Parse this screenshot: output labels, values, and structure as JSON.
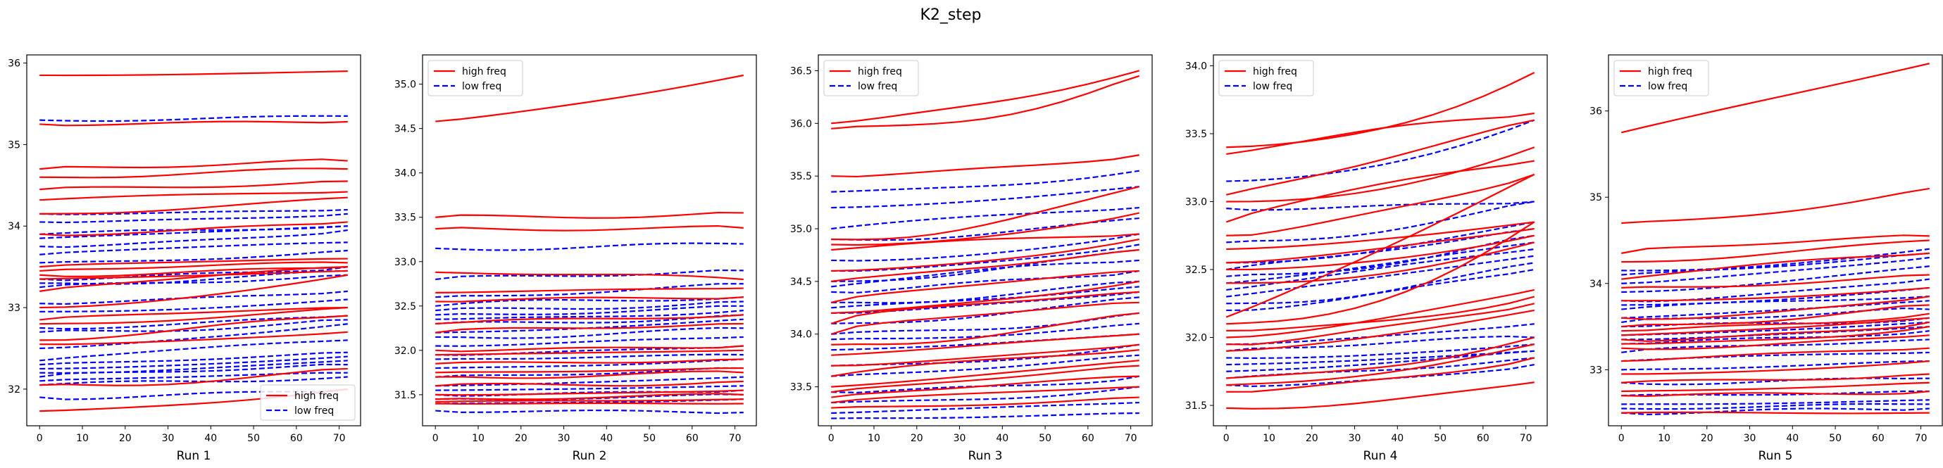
{
  "figure": {
    "suptitle": "K2_step",
    "colors": {
      "high": "#ff0000",
      "low": "#0000ff"
    },
    "legend_labels": {
      "high": "high freq",
      "low": "low freq"
    }
  },
  "chart_data": [
    {
      "type": "line",
      "xlabel": "Run 1",
      "xlim": [
        -3,
        75
      ],
      "ylim": [
        31.55,
        36.1
      ],
      "xticks": [
        0,
        10,
        20,
        30,
        40,
        50,
        60,
        70
      ],
      "yticks": [
        32,
        33,
        34,
        35,
        36
      ],
      "legend": "lower-right",
      "high_lines": [
        [
          35.85,
          35.9
        ],
        [
          35.25,
          35.28
        ],
        [
          34.7,
          34.8
        ],
        [
          34.6,
          34.7
        ],
        [
          34.45,
          34.55
        ],
        [
          34.32,
          34.42
        ],
        [
          34.15,
          34.35
        ],
        [
          33.9,
          34.05
        ],
        [
          33.5,
          33.6
        ],
        [
          33.45,
          33.55
        ],
        [
          33.4,
          33.5
        ],
        [
          33.35,
          33.45
        ],
        [
          33.2,
          33.5
        ],
        [
          33.0,
          33.4
        ],
        [
          32.85,
          33.0
        ],
        [
          32.8,
          33.0
        ],
        [
          32.6,
          32.9
        ],
        [
          32.55,
          32.7
        ],
        [
          32.05,
          32.25
        ],
        [
          31.73,
          32.0
        ]
      ],
      "low_lines": [
        [
          35.3,
          35.35
        ],
        [
          34.15,
          34.2
        ],
        [
          34.05,
          34.15
        ],
        [
          33.9,
          34.0
        ],
        [
          33.85,
          34.0
        ],
        [
          33.75,
          33.95
        ],
        [
          33.65,
          33.8
        ],
        [
          33.55,
          33.7
        ],
        [
          33.35,
          33.5
        ],
        [
          33.3,
          33.45
        ],
        [
          33.25,
          33.4
        ],
        [
          33.05,
          33.2
        ],
        [
          32.95,
          33.1
        ],
        [
          32.75,
          32.9
        ],
        [
          32.7,
          32.85
        ],
        [
          32.5,
          32.8
        ],
        [
          32.35,
          32.6
        ],
        [
          32.3,
          32.45
        ],
        [
          32.25,
          32.4
        ],
        [
          32.2,
          32.35
        ],
        [
          32.15,
          32.3
        ],
        [
          32.1,
          32.2
        ],
        [
          32.05,
          32.15
        ],
        [
          31.9,
          32.0
        ]
      ]
    },
    {
      "type": "line",
      "xlabel": "Run 2",
      "xlim": [
        -3,
        75
      ],
      "ylim": [
        31.15,
        35.33
      ],
      "xticks": [
        0,
        10,
        20,
        30,
        40,
        50,
        60,
        70
      ],
      "yticks": [
        31.5,
        32.0,
        32.5,
        33.0,
        33.5,
        34.0,
        34.5,
        35.0
      ],
      "legend": "upper-left",
      "high_lines": [
        [
          34.58,
          35.1
        ],
        [
          33.5,
          33.55
        ],
        [
          33.37,
          33.38
        ],
        [
          32.88,
          32.8
        ],
        [
          32.65,
          32.7
        ],
        [
          32.55,
          32.6
        ],
        [
          32.3,
          32.4
        ],
        [
          32.2,
          32.3
        ],
        [
          32.0,
          32.05
        ],
        [
          31.95,
          32.0
        ],
        [
          31.85,
          31.9
        ],
        [
          31.75,
          31.8
        ],
        [
          31.7,
          31.75
        ],
        [
          31.6,
          31.65
        ],
        [
          31.5,
          31.55
        ],
        [
          31.45,
          31.5
        ],
        [
          31.42,
          31.45
        ],
        [
          31.4,
          31.4
        ]
      ],
      "low_lines": [
        [
          33.15,
          33.2
        ],
        [
          32.8,
          32.9
        ],
        [
          32.6,
          32.75
        ],
        [
          32.5,
          32.6
        ],
        [
          32.45,
          32.55
        ],
        [
          32.4,
          32.5
        ],
        [
          32.35,
          32.45
        ],
        [
          32.3,
          32.4
        ],
        [
          32.2,
          32.35
        ],
        [
          32.15,
          32.25
        ],
        [
          32.05,
          32.15
        ],
        [
          31.95,
          32.05
        ],
        [
          31.9,
          31.95
        ],
        [
          31.8,
          31.9
        ],
        [
          31.7,
          31.8
        ],
        [
          31.6,
          31.7
        ],
        [
          31.55,
          31.6
        ],
        [
          31.5,
          31.55
        ],
        [
          31.45,
          31.5
        ],
        [
          31.4,
          31.45
        ],
        [
          31.32,
          31.3
        ]
      ]
    },
    {
      "type": "line",
      "xlabel": "Run 3",
      "xlim": [
        -3,
        75
      ],
      "ylim": [
        33.13,
        36.65
      ],
      "xticks": [
        0,
        10,
        20,
        30,
        40,
        50,
        60,
        70
      ],
      "yticks": [
        33.5,
        34.0,
        34.5,
        35.0,
        35.5,
        36.0,
        36.5
      ],
      "legend": "upper-left",
      "high_lines": [
        [
          36.0,
          36.5
        ],
        [
          35.95,
          36.45
        ],
        [
          35.5,
          35.7
        ],
        [
          34.9,
          35.4
        ],
        [
          34.85,
          35.15
        ],
        [
          34.8,
          34.95
        ],
        [
          34.6,
          34.9
        ],
        [
          34.5,
          34.8
        ],
        [
          34.3,
          34.6
        ],
        [
          34.2,
          34.5
        ],
        [
          34.1,
          34.4
        ],
        [
          34.0,
          34.3
        ],
        [
          33.9,
          34.2
        ],
        [
          33.8,
          34.0
        ],
        [
          33.7,
          33.9
        ],
        [
          33.6,
          33.85
        ],
        [
          33.5,
          33.75
        ],
        [
          33.45,
          33.7
        ],
        [
          33.4,
          33.6
        ],
        [
          33.35,
          33.5
        ],
        [
          33.3,
          33.4
        ]
      ],
      "low_lines": [
        [
          35.35,
          35.55
        ],
        [
          35.2,
          35.4
        ],
        [
          35.0,
          35.2
        ],
        [
          34.9,
          35.1
        ],
        [
          34.7,
          34.95
        ],
        [
          34.6,
          34.85
        ],
        [
          34.5,
          34.8
        ],
        [
          34.45,
          34.7
        ],
        [
          34.4,
          34.6
        ],
        [
          34.3,
          34.5
        ],
        [
          34.25,
          34.45
        ],
        [
          34.2,
          34.4
        ],
        [
          34.1,
          34.35
        ],
        [
          34.0,
          34.2
        ],
        [
          33.95,
          34.1
        ],
        [
          33.85,
          34.0
        ],
        [
          33.7,
          33.9
        ],
        [
          33.6,
          33.8
        ],
        [
          33.45,
          33.6
        ],
        [
          33.35,
          33.5
        ],
        [
          33.25,
          33.35
        ],
        [
          33.2,
          33.25
        ]
      ]
    },
    {
      "type": "line",
      "xlabel": "Run 4",
      "xlim": [
        -3,
        75
      ],
      "ylim": [
        31.35,
        34.08
      ],
      "xticks": [
        0,
        10,
        20,
        30,
        40,
        50,
        60,
        70
      ],
      "yticks": [
        31.5,
        32.0,
        32.5,
        33.0,
        33.5,
        34.0
      ],
      "legend": "upper-left",
      "high_lines": [
        [
          33.4,
          33.95
        ],
        [
          33.35,
          33.65
        ],
        [
          33.05,
          33.6
        ],
        [
          33.0,
          33.4
        ],
        [
          32.85,
          33.3
        ],
        [
          32.75,
          33.2
        ],
        [
          32.65,
          32.85
        ],
        [
          32.55,
          32.8
        ],
        [
          32.5,
          32.75
        ],
        [
          32.4,
          32.7
        ],
        [
          32.15,
          33.2
        ],
        [
          32.1,
          32.85
        ],
        [
          32.05,
          32.3
        ],
        [
          32.0,
          32.35
        ],
        [
          31.95,
          32.25
        ],
        [
          31.9,
          32.2
        ],
        [
          31.7,
          32.0
        ],
        [
          31.65,
          31.95
        ],
        [
          31.6,
          31.85
        ],
        [
          31.48,
          31.67
        ]
      ],
      "low_lines": [
        [
          33.15,
          33.6
        ],
        [
          32.95,
          33.0
        ],
        [
          32.7,
          33.0
        ],
        [
          32.55,
          32.85
        ],
        [
          32.5,
          32.8
        ],
        [
          32.45,
          32.75
        ],
        [
          32.4,
          32.7
        ],
        [
          32.35,
          32.65
        ],
        [
          32.3,
          32.6
        ],
        [
          32.25,
          32.55
        ],
        [
          32.2,
          32.5
        ],
        [
          31.95,
          32.1
        ],
        [
          31.9,
          32.0
        ],
        [
          31.85,
          31.95
        ],
        [
          31.8,
          31.9
        ],
        [
          31.75,
          31.9
        ],
        [
          31.7,
          31.85
        ],
        [
          31.65,
          31.8
        ]
      ]
    },
    {
      "type": "line",
      "xlabel": "Run 5",
      "xlim": [
        -3,
        75
      ],
      "ylim": [
        32.35,
        36.65
      ],
      "xticks": [
        0,
        10,
        20,
        30,
        40,
        50,
        60,
        70
      ],
      "yticks": [
        33,
        34,
        35,
        36
      ],
      "legend": "upper-left",
      "high_lines": [
        [
          35.75,
          36.55
        ],
        [
          34.7,
          35.1
        ],
        [
          34.35,
          34.55
        ],
        [
          34.25,
          34.5
        ],
        [
          34.05,
          34.35
        ],
        [
          33.95,
          34.1
        ],
        [
          33.8,
          33.95
        ],
        [
          33.6,
          33.85
        ],
        [
          33.5,
          33.75
        ],
        [
          33.45,
          33.65
        ],
        [
          33.4,
          33.6
        ],
        [
          33.35,
          33.55
        ],
        [
          33.3,
          33.5
        ],
        [
          33.25,
          33.4
        ],
        [
          33.1,
          33.25
        ],
        [
          32.95,
          33.1
        ],
        [
          32.85,
          32.95
        ],
        [
          32.75,
          32.85
        ],
        [
          32.7,
          32.75
        ],
        [
          32.5,
          32.5
        ]
      ],
      "low_lines": [
        [
          34.15,
          34.4
        ],
        [
          34.1,
          34.35
        ],
        [
          34.0,
          34.3
        ],
        [
          33.9,
          34.2
        ],
        [
          33.8,
          34.05
        ],
        [
          33.75,
          33.95
        ],
        [
          33.7,
          33.85
        ],
        [
          33.6,
          33.8
        ],
        [
          33.55,
          33.7
        ],
        [
          33.5,
          33.6
        ],
        [
          33.4,
          33.55
        ],
        [
          33.35,
          33.5
        ],
        [
          33.3,
          33.45
        ],
        [
          33.2,
          33.35
        ],
        [
          33.1,
          33.2
        ],
        [
          33.0,
          33.1
        ],
        [
          32.85,
          32.9
        ],
        [
          32.7,
          32.75
        ],
        [
          32.6,
          32.65
        ],
        [
          32.55,
          32.6
        ],
        [
          32.5,
          32.55
        ]
      ]
    }
  ]
}
